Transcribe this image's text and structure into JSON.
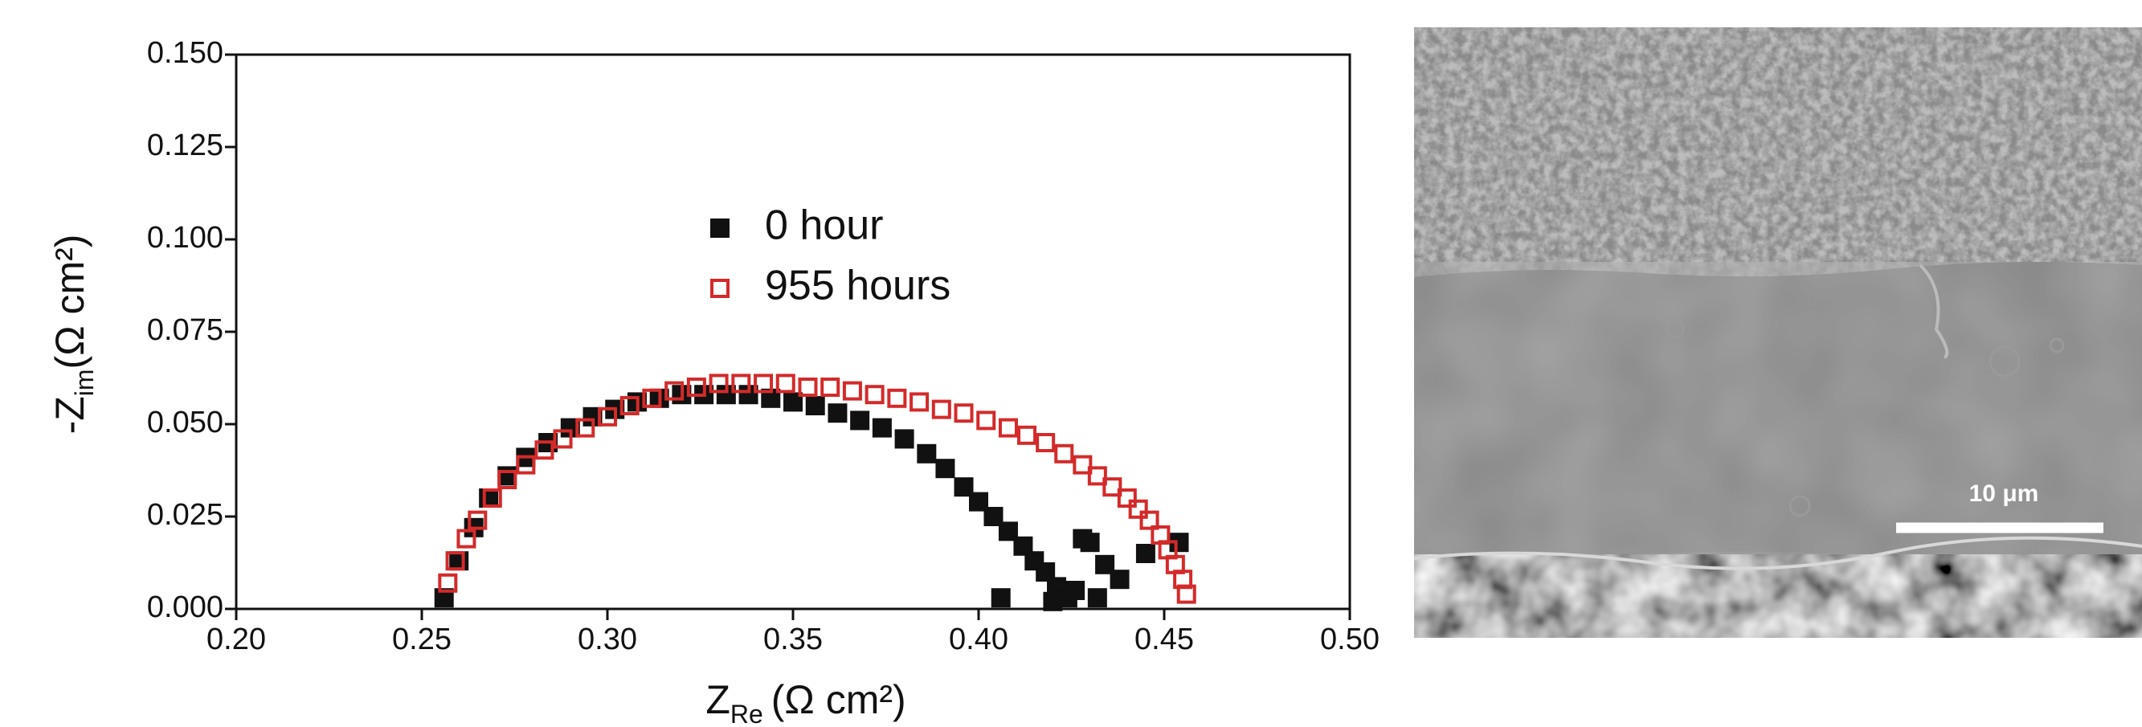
{
  "chart_data": {
    "type": "scatter",
    "x_label": {
      "main": "Z",
      "sub": "Re",
      "unit": "(Ω cm²)"
    },
    "y_label": {
      "main": "-Z",
      "sub": "im",
      "unit": "(Ω cm²)"
    },
    "xlim": [
      0.2,
      0.5
    ],
    "ylim": [
      0,
      0.15
    ],
    "xticks": [
      {
        "value": 0.2,
        "label": "0.20"
      },
      0.25,
      {
        "value": 0.3,
        "label": "0.30"
      },
      0.35,
      {
        "value": 0.4,
        "label": "0.40"
      },
      0.45,
      {
        "value": 0.5,
        "label": "0.50"
      }
    ],
    "yticks": [
      {
        "value": 0,
        "label": "0.000"
      },
      0.025,
      {
        "value": 0.05,
        "label": "0.050"
      },
      0.075,
      {
        "value": 0.1,
        "label": "0.100"
      },
      0.125,
      {
        "value": 0.15,
        "label": "0.150"
      }
    ],
    "legend_position": "center",
    "series": [
      {
        "name": "0 hour",
        "color": "#111111",
        "marker": "square",
        "filled": true,
        "x": [
          0.256,
          0.26,
          0.264,
          0.268,
          0.273,
          0.278,
          0.284,
          0.29,
          0.296,
          0.302,
          0.308,
          0.314,
          0.32,
          0.326,
          0.332,
          0.338,
          0.344,
          0.35,
          0.356,
          0.362,
          0.368,
          0.374,
          0.38,
          0.386,
          0.391,
          0.396,
          0.4,
          0.404,
          0.408,
          0.412,
          0.415,
          0.418,
          0.421,
          0.424,
          0.406,
          0.42,
          0.426,
          0.43,
          0.434,
          0.438,
          0.428,
          0.445,
          0.454,
          0.432
        ],
        "values": [
          0.003,
          0.013,
          0.022,
          0.03,
          0.036,
          0.041,
          0.045,
          0.049,
          0.052,
          0.054,
          0.056,
          0.057,
          0.058,
          0.058,
          0.058,
          0.058,
          0.057,
          0.056,
          0.055,
          0.053,
          0.051,
          0.049,
          0.046,
          0.042,
          0.038,
          0.033,
          0.029,
          0.025,
          0.021,
          0.017,
          0.013,
          0.01,
          0.006,
          0.003,
          0.003,
          0.002,
          0.005,
          0.018,
          0.012,
          0.008,
          0.019,
          0.015,
          0.018,
          0.003
        ]
      },
      {
        "name": "955 hours",
        "color": "#d42a2a",
        "marker": "square",
        "filled": false,
        "x": [
          0.257,
          0.259,
          0.262,
          0.265,
          0.269,
          0.273,
          0.278,
          0.283,
          0.288,
          0.294,
          0.3,
          0.306,
          0.312,
          0.318,
          0.324,
          0.33,
          0.336,
          0.342,
          0.348,
          0.354,
          0.36,
          0.366,
          0.372,
          0.378,
          0.384,
          0.39,
          0.396,
          0.402,
          0.408,
          0.413,
          0.418,
          0.423,
          0.428,
          0.432,
          0.436,
          0.44,
          0.443,
          0.446,
          0.449,
          0.451,
          0.453,
          0.455,
          0.456
        ],
        "values": [
          0.007,
          0.013,
          0.019,
          0.024,
          0.03,
          0.035,
          0.039,
          0.043,
          0.046,
          0.049,
          0.052,
          0.055,
          0.057,
          0.059,
          0.06,
          0.061,
          0.061,
          0.061,
          0.061,
          0.06,
          0.06,
          0.059,
          0.058,
          0.057,
          0.056,
          0.054,
          0.053,
          0.051,
          0.049,
          0.047,
          0.045,
          0.042,
          0.039,
          0.036,
          0.033,
          0.03,
          0.027,
          0.024,
          0.02,
          0.016,
          0.012,
          0.008,
          0.004
        ]
      }
    ]
  },
  "image": {
    "scale_bar_label": "10 μm"
  }
}
